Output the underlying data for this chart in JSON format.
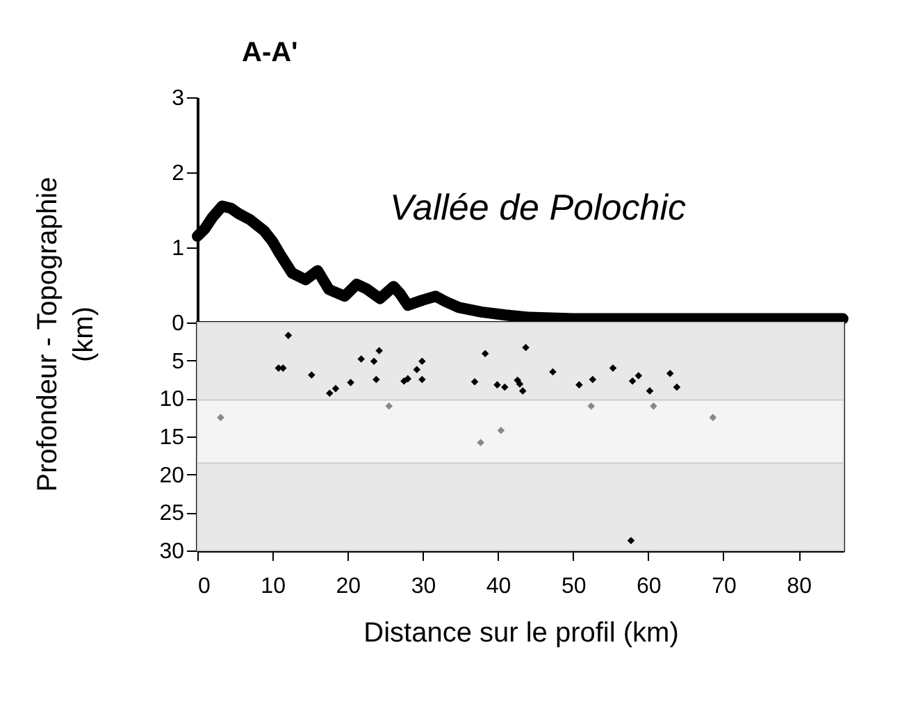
{
  "chart_data": [
    {
      "type": "line",
      "title": "A-A'",
      "ylabel": "Profondeur  - Topographie\n(km)",
      "annotations": [
        "Vallée de Polochic"
      ],
      "color": "#000000",
      "tick_labels": "y",
      "xlim": [
        0,
        86
      ],
      "ylim": [
        0,
        3
      ],
      "yticks": [
        0,
        1,
        2,
        3
      ],
      "x": [
        0,
        1,
        2,
        3.3,
        4.5,
        5.5,
        7,
        8.9,
        10,
        11,
        12.6,
        14.4,
        16,
        17.5,
        19.6,
        21.2,
        22.5,
        24.3,
        26.1,
        27,
        28,
        30,
        31.7,
        33,
        34.8,
        37.8,
        41,
        44,
        50,
        60,
        70,
        80,
        85.9
      ],
      "values": [
        1.15,
        1.25,
        1.4,
        1.55,
        1.52,
        1.45,
        1.37,
        1.22,
        1.08,
        0.91,
        0.66,
        0.57,
        0.69,
        0.44,
        0.35,
        0.51,
        0.45,
        0.32,
        0.48,
        0.38,
        0.23,
        0.3,
        0.35,
        0.28,
        0.2,
        0.14,
        0.1,
        0.07,
        0.05,
        0.05,
        0.05,
        0.05,
        0.05
      ]
    },
    {
      "type": "scatter",
      "xlabel": "Distance sur le profil (km)",
      "marker": "diamond",
      "xlim": [
        0,
        86
      ],
      "xticks": [
        0,
        10,
        20,
        30,
        40,
        50,
        60,
        70,
        80
      ],
      "ylim": [
        30,
        0
      ],
      "yticks": [
        {
          "value": 0,
          "label": null
        },
        5,
        10,
        15,
        20,
        25,
        30
      ],
      "bands": [
        {
          "axis": "y",
          "from": 0,
          "to": 30,
          "color": "#e8e8e8"
        },
        {
          "axis": "y",
          "from": 10.2,
          "to": 18.5,
          "color": "#f4f4f4"
        }
      ],
      "series": [
        {
          "color": "#000000",
          "x": [
            12.1,
            10.8,
            11.4,
            15.2,
            17.6,
            18.4,
            20.4,
            21.8,
            23.5,
            24.2,
            23.8,
            27.5,
            28.0,
            29.2,
            29.9,
            29.9,
            36.9,
            38.3,
            39.9,
            40.9,
            42.6,
            42.9,
            43.3,
            43.7,
            47.3,
            50.8,
            52.6,
            55.3,
            57.9,
            58.7,
            60.2,
            62.9,
            63.8,
            57.7
          ],
          "values": [
            1.7,
            6.0,
            6.0,
            6.9,
            9.3,
            8.7,
            7.9,
            4.8,
            5.1,
            3.7,
            7.5,
            7.7,
            7.4,
            6.2,
            5.1,
            7.5,
            7.8,
            4.1,
            8.2,
            8.5,
            7.6,
            8.1,
            9.0,
            3.3,
            6.5,
            8.2,
            7.5,
            6.0,
            7.7,
            7.0,
            9.0,
            6.7,
            8.5,
            28.7
          ]
        },
        {
          "color": "#888888",
          "x": [
            3.1,
            25.5,
            37.7,
            40.4,
            52.4,
            60.7,
            68.6
          ],
          "values": [
            12.5,
            11.0,
            15.8,
            14.2,
            11.0,
            11.0,
            12.5
          ]
        }
      ]
    }
  ]
}
